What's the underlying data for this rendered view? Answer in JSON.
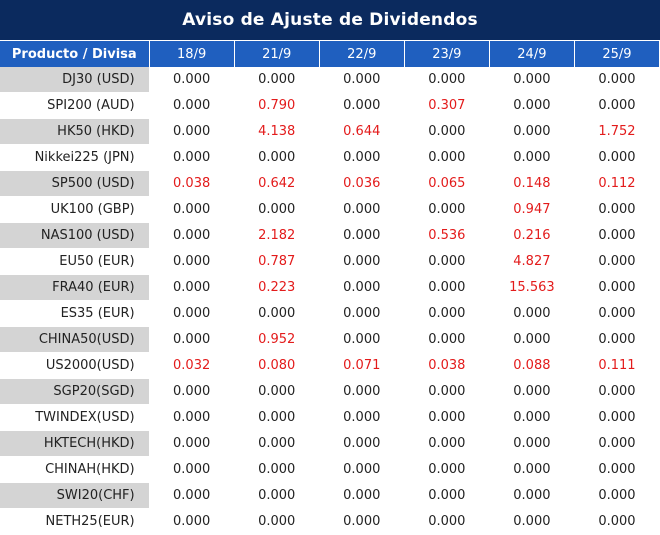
{
  "title": "Aviso de Ajuste de Dividendos",
  "header": [
    "Producto / Divisa",
    "18/9",
    "21/9",
    "22/9",
    "23/9",
    "24/9",
    "25/9"
  ],
  "colors": {
    "title_bg": "#0b2a5e",
    "header_bg": "#1f5fbf",
    "shade": "#d4d4d4",
    "nonzero": "#e31b1b"
  },
  "rows": [
    {
      "name": "DJ30 (USD)",
      "values": [
        "0.000",
        "0.000",
        "0.000",
        "0.000",
        "0.000",
        "0.000"
      ]
    },
    {
      "name": "SPI200 (AUD)",
      "values": [
        "0.000",
        "0.790",
        "0.000",
        "0.307",
        "0.000",
        "0.000"
      ]
    },
    {
      "name": "HK50 (HKD)",
      "values": [
        "0.000",
        "4.138",
        "0.644",
        "0.000",
        "0.000",
        "1.752"
      ]
    },
    {
      "name": "Nikkei225 (JPN)",
      "values": [
        "0.000",
        "0.000",
        "0.000",
        "0.000",
        "0.000",
        "0.000"
      ]
    },
    {
      "name": "SP500 (USD)",
      "values": [
        "0.038",
        "0.642",
        "0.036",
        "0.065",
        "0.148",
        "0.112"
      ]
    },
    {
      "name": "UK100 (GBP)",
      "values": [
        "0.000",
        "0.000",
        "0.000",
        "0.000",
        "0.947",
        "0.000"
      ]
    },
    {
      "name": "NAS100 (USD)",
      "values": [
        "0.000",
        "2.182",
        "0.000",
        "0.536",
        "0.216",
        "0.000"
      ]
    },
    {
      "name": "EU50 (EUR)",
      "values": [
        "0.000",
        "0.787",
        "0.000",
        "0.000",
        "4.827",
        "0.000"
      ]
    },
    {
      "name": "FRA40 (EUR)",
      "values": [
        "0.000",
        "0.223",
        "0.000",
        "0.000",
        "15.563",
        "0.000"
      ]
    },
    {
      "name": "ES35 (EUR)",
      "values": [
        "0.000",
        "0.000",
        "0.000",
        "0.000",
        "0.000",
        "0.000"
      ]
    },
    {
      "name": "CHINA50(USD)",
      "values": [
        "0.000",
        "0.952",
        "0.000",
        "0.000",
        "0.000",
        "0.000"
      ]
    },
    {
      "name": "US2000(USD)",
      "values": [
        "0.032",
        "0.080",
        "0.071",
        "0.038",
        "0.088",
        "0.111"
      ]
    },
    {
      "name": "SGP20(SGD)",
      "values": [
        "0.000",
        "0.000",
        "0.000",
        "0.000",
        "0.000",
        "0.000"
      ]
    },
    {
      "name": "TWINDEX(USD)",
      "values": [
        "0.000",
        "0.000",
        "0.000",
        "0.000",
        "0.000",
        "0.000"
      ]
    },
    {
      "name": "HKTECH(HKD)",
      "values": [
        "0.000",
        "0.000",
        "0.000",
        "0.000",
        "0.000",
        "0.000"
      ]
    },
    {
      "name": "CHINAH(HKD)",
      "values": [
        "0.000",
        "0.000",
        "0.000",
        "0.000",
        "0.000",
        "0.000"
      ]
    },
    {
      "name": "SWI20(CHF)",
      "values": [
        "0.000",
        "0.000",
        "0.000",
        "0.000",
        "0.000",
        "0.000"
      ]
    },
    {
      "name": "NETH25(EUR)",
      "values": [
        "0.000",
        "0.000",
        "0.000",
        "0.000",
        "0.000",
        "0.000"
      ]
    }
  ]
}
